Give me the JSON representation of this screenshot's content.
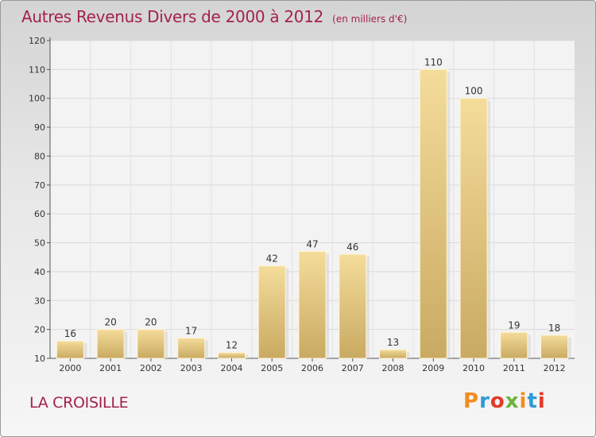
{
  "header": {
    "title": "Autres Revenus Divers de 2000 à 2012",
    "subtitle": "(en milliers d'€)"
  },
  "footer": {
    "commune": "LA CROISILLE",
    "brand": "Proxiti",
    "brand_colors": [
      "#f28c1e",
      "#2f9ad6",
      "#e23a2a",
      "#6ab43a",
      "#f28c1e",
      "#2f9ad6",
      "#e23a2a"
    ]
  },
  "chart_data": {
    "type": "bar",
    "title": "Autres Revenus Divers de 2000 à 2012",
    "subtitle": "(en milliers d'€)",
    "categories": [
      "2000",
      "2001",
      "2002",
      "2003",
      "2004",
      "2005",
      "2006",
      "2007",
      "2008",
      "2009",
      "2010",
      "2011",
      "2012"
    ],
    "values": [
      16,
      20,
      20,
      17,
      12,
      42,
      47,
      46,
      13,
      110,
      100,
      19,
      18
    ],
    "ylim": [
      10,
      120
    ],
    "yticks": [
      10,
      20,
      30,
      40,
      50,
      60,
      70,
      80,
      90,
      100,
      110,
      120
    ],
    "grid": true,
    "xlabel": "",
    "ylabel": "",
    "bar_color": "#e3c27e",
    "data_labels": true
  }
}
